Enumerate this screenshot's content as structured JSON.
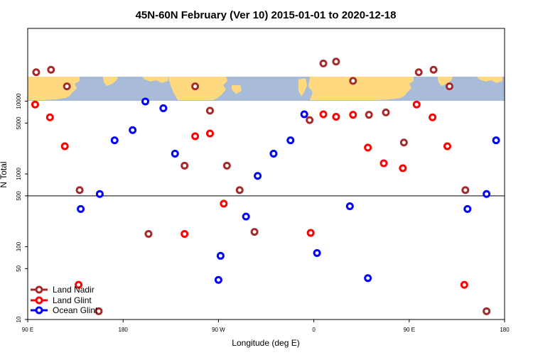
{
  "chart_data": {
    "type": "scatter",
    "title": "45N-60N February (Ver 10)   2015-01-01 to 2020-12-18",
    "xlabel": "Longitude (deg E)",
    "ylabel": "N Total",
    "x_scale": "cyclic longitude",
    "x_ticks": [
      {
        "lon": 90,
        "label": "90 E"
      },
      {
        "lon": 180,
        "label": "180"
      },
      {
        "lon": 270,
        "label": "90 W"
      },
      {
        "lon": 360,
        "label": "0"
      },
      {
        "lon": 450,
        "label": "90 E"
      },
      {
        "lon": 540,
        "label": "180"
      }
    ],
    "xlim": [
      90,
      540
    ],
    "y_ticks": [
      {
        "value": 10,
        "label": "10"
      },
      {
        "value": 50,
        "label": "50"
      },
      {
        "value": 100,
        "label": "100"
      },
      {
        "value": 500,
        "label": "500"
      },
      {
        "value": 1000,
        "label": "1000"
      },
      {
        "value": 5000,
        "label": "5000"
      },
      {
        "value": 10000,
        "label": "10000"
      }
    ],
    "reference_line": 500,
    "map_band_latitude": "45N-60N",
    "legend_position": "bottom-left",
    "series": [
      {
        "name": "Land Nadir",
        "color": "#a52a2a",
        "points": [
          {
            "lon": 98,
            "n": 25000
          },
          {
            "lon": 112,
            "n": 27000
          },
          {
            "lon": 127,
            "n": 16000
          },
          {
            "lon": 139,
            "n": 600
          },
          {
            "lon": 157,
            "n": 13
          },
          {
            "lon": 204,
            "n": 150
          },
          {
            "lon": 238,
            "n": 1300
          },
          {
            "lon": 248,
            "n": 16000
          },
          {
            "lon": 262,
            "n": 7400
          },
          {
            "lon": 278,
            "n": 1300
          },
          {
            "lon": 290,
            "n": 600
          },
          {
            "lon": 304,
            "n": 160
          },
          {
            "lon": 356,
            "n": 5500
          },
          {
            "lon": 369,
            "n": 33000
          },
          {
            "lon": 381,
            "n": 35000
          },
          {
            "lon": 397,
            "n": 19000
          },
          {
            "lon": 412,
            "n": 6500
          },
          {
            "lon": 428,
            "n": 7000
          },
          {
            "lon": 445,
            "n": 2700
          },
          {
            "lon": 459,
            "n": 25000
          },
          {
            "lon": 473,
            "n": 27000
          },
          {
            "lon": 488,
            "n": 16000
          },
          {
            "lon": 503,
            "n": 600
          },
          {
            "lon": 523,
            "n": 13
          }
        ]
      },
      {
        "name": "Land Glint",
        "color": "#ff0000",
        "points": [
          {
            "lon": 97,
            "n": 9000
          },
          {
            "lon": 111,
            "n": 6000
          },
          {
            "lon": 125,
            "n": 2400
          },
          {
            "lon": 138,
            "n": 30
          },
          {
            "lon": 238,
            "n": 150
          },
          {
            "lon": 248,
            "n": 3300
          },
          {
            "lon": 262,
            "n": 3600
          },
          {
            "lon": 275,
            "n": 390
          },
          {
            "lon": 357,
            "n": 155
          },
          {
            "lon": 369,
            "n": 6600
          },
          {
            "lon": 381,
            "n": 6100
          },
          {
            "lon": 397,
            "n": 6500
          },
          {
            "lon": 411,
            "n": 2300
          },
          {
            "lon": 426,
            "n": 1400
          },
          {
            "lon": 444,
            "n": 1200
          },
          {
            "lon": 457,
            "n": 9000
          },
          {
            "lon": 472,
            "n": 6000
          },
          {
            "lon": 486,
            "n": 2400
          },
          {
            "lon": 502,
            "n": 30
          }
        ]
      },
      {
        "name": "Ocean Glint",
        "color": "#0000ff",
        "points": [
          {
            "lon": 140,
            "n": 330
          },
          {
            "lon": 158,
            "n": 530
          },
          {
            "lon": 172,
            "n": 2900
          },
          {
            "lon": 189,
            "n": 4000
          },
          {
            "lon": 201,
            "n": 9900
          },
          {
            "lon": 218,
            "n": 8000
          },
          {
            "lon": 229,
            "n": 1900
          },
          {
            "lon": 270,
            "n": 35
          },
          {
            "lon": 272,
            "n": 75
          },
          {
            "lon": 296,
            "n": 260
          },
          {
            "lon": 307,
            "n": 940
          },
          {
            "lon": 322,
            "n": 1900
          },
          {
            "lon": 338,
            "n": 2900
          },
          {
            "lon": 351,
            "n": 6600
          },
          {
            "lon": 363,
            "n": 82
          },
          {
            "lon": 394,
            "n": 360
          },
          {
            "lon": 411,
            "n": 37
          },
          {
            "lon": 505,
            "n": 330
          },
          {
            "lon": 523,
            "n": 530
          },
          {
            "lon": 532,
            "n": 2900
          }
        ]
      }
    ]
  }
}
